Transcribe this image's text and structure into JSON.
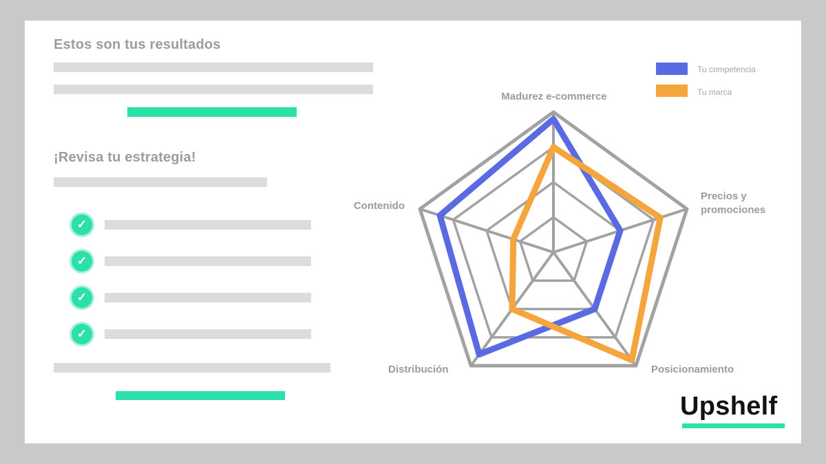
{
  "slide": {
    "results_title": "Estos son tus resultados",
    "strategy_title": "¡Revisa tu estrategia!",
    "checklist_rows": 4,
    "check_icon": "✓"
  },
  "legend": {
    "items": [
      {
        "label": "Tu competencia",
        "color": "#5a6ae3"
      },
      {
        "label": "Tu marca",
        "color": "#f6a53d"
      }
    ]
  },
  "chart_data": {
    "type": "radar",
    "title": "",
    "categories": [
      "Madurez e-commerce",
      "Precios y promociones",
      "Posicionamiento",
      "Distribución",
      "Contenido"
    ],
    "series": [
      {
        "name": "Tu competencia",
        "color": "#5a6ae3",
        "values": [
          0.95,
          0.5,
          0.5,
          0.9,
          0.85
        ]
      },
      {
        "name": "Tu marca",
        "color": "#f6a53d",
        "values": [
          0.75,
          0.8,
          0.95,
          0.5,
          0.3
        ]
      }
    ],
    "scale": {
      "min": 0,
      "max": 1,
      "rings": 4
    },
    "grid_color": "#a2a2a2",
    "grid": true,
    "legend_position": "top-right"
  },
  "brand": {
    "logo_text": "Upshelf",
    "accent_color": "#2ce0a9"
  }
}
